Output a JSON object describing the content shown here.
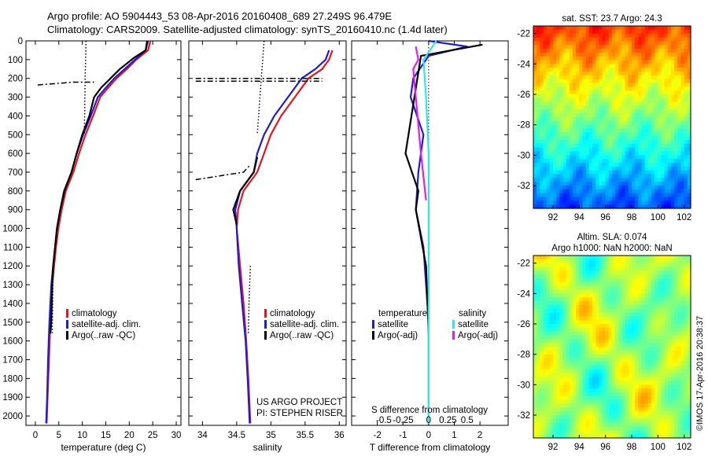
{
  "header": {
    "line1": "Argo profile: AO 5904443_53 08-Apr-2016 20160408_689 27.249S 96.479E",
    "line2": "Climatology: CARS2009. Satellite-adjusted climatology: synTS_20160410.nc (1.4d later)"
  },
  "colors": {
    "climatology": "#e8141c",
    "satellite": "#1c1ce0",
    "argo": "#000000",
    "sal_satellite": "#2ee8e8",
    "sal_argo": "#e81ce8"
  },
  "chart_data": [
    {
      "type": "line",
      "panel": "temperature",
      "xlabel": "temperature (deg C)",
      "xlim": [
        -2,
        31
      ],
      "xticks": [
        0,
        5,
        10,
        15,
        20,
        25,
        30
      ],
      "ylim": [
        2050,
        0
      ],
      "yticks": [
        0,
        100,
        200,
        300,
        400,
        500,
        600,
        700,
        800,
        900,
        1000,
        1100,
        1200,
        1300,
        1400,
        1500,
        1600,
        1700,
        1800,
        1900,
        2000
      ],
      "legend": [
        "climatology",
        "satellite-adj. clim.",
        "Argo(..raw -QC)"
      ],
      "series": [
        {
          "name": "climatology",
          "color": "#e8141c",
          "points": [
            [
              24.5,
              0
            ],
            [
              24,
              50
            ],
            [
              21.5,
              100
            ],
            [
              19.5,
              150
            ],
            [
              17.3,
              200
            ],
            [
              15.5,
              250
            ],
            [
              13.8,
              300
            ],
            [
              12.3,
              400
            ],
            [
              10.7,
              500
            ],
            [
              9.3,
              600
            ],
            [
              8.1,
              700
            ],
            [
              6.5,
              800
            ],
            [
              5.6,
              900
            ],
            [
              4.9,
              1000
            ],
            [
              4.4,
              1100
            ],
            [
              4.0,
              1200
            ],
            [
              3.6,
              1300
            ],
            [
              3.2,
              1500
            ],
            [
              2.9,
              1700
            ],
            [
              2.6,
              1900
            ],
            [
              2.4,
              2040
            ]
          ]
        },
        {
          "name": "satellite-adj. clim.",
          "color": "#1c1ce0",
          "points": [
            [
              24.0,
              0
            ],
            [
              23.5,
              50
            ],
            [
              21.2,
              100
            ],
            [
              19,
              150
            ],
            [
              16.8,
              200
            ],
            [
              15,
              250
            ],
            [
              13.3,
              300
            ],
            [
              11.8,
              400
            ],
            [
              10.2,
              500
            ],
            [
              8.8,
              600
            ],
            [
              7.7,
              700
            ],
            [
              6.1,
              800
            ],
            [
              5.3,
              900
            ],
            [
              4.6,
              1000
            ],
            [
              4.2,
              1100
            ],
            [
              3.8,
              1200
            ],
            [
              3.4,
              1300
            ],
            [
              3.0,
              1500
            ],
            [
              2.7,
              1700
            ],
            [
              2.5,
              1900
            ],
            [
              2.3,
              2040
            ]
          ]
        },
        {
          "name": "Argo",
          "color": "#000000",
          "points": [
            [
              23.8,
              0
            ],
            [
              23.5,
              50
            ],
            [
              21,
              90
            ],
            [
              18,
              150
            ],
            [
              16,
              200
            ],
            [
              14,
              250
            ],
            [
              12.5,
              300
            ],
            [
              11.5,
              400
            ],
            [
              10,
              500
            ],
            [
              8.8,
              600
            ],
            [
              7.7,
              700
            ],
            [
              6.2,
              800
            ],
            [
              5.3,
              900
            ],
            [
              4.6,
              1000
            ],
            [
              4.2,
              1100
            ],
            [
              3.8,
              1200
            ],
            [
              3.6,
              1300
            ],
            [
              3.4,
              1500
            ],
            [
              3.2,
              1560
            ]
          ]
        },
        {
          "name": "Argo raw",
          "style": "dashdot",
          "color": "#000000",
          "points": [
            [
              0.5,
              235
            ],
            [
              8,
              220
            ],
            [
              12.5,
              220
            ]
          ]
        },
        {
          "name": "Argo raw",
          "style": "dotted",
          "color": "#000000",
          "points": [
            [
              10.8,
              0
            ],
            [
              10.6,
              200
            ],
            [
              10.5,
              400
            ],
            [
              10.4,
              500
            ]
          ]
        },
        {
          "name": "Argo raw",
          "style": "dotted",
          "color": "#000000",
          "points": [
            [
              3.8,
              1200
            ],
            [
              3.7,
              1400
            ],
            [
              3.6,
              1560
            ]
          ]
        }
      ]
    },
    {
      "type": "line",
      "panel": "salinity",
      "xlabel": "salinity",
      "xlim": [
        33.8,
        36.1
      ],
      "xticks": [
        34,
        34.5,
        35,
        35.5,
        36
      ],
      "ylim": [
        2050,
        0
      ],
      "legend": [
        "climatology",
        "satellite-adj. clim.",
        "Argo(..raw -QC)"
      ],
      "annotation": [
        "US ARGO PROJECT",
        "PI: STEPHEN RISER"
      ],
      "series": [
        {
          "name": "climatology",
          "color": "#e8141c",
          "points": [
            [
              35.9,
              50
            ],
            [
              35.85,
              100
            ],
            [
              35.75,
              150
            ],
            [
              35.55,
              200
            ],
            [
              35.35,
              300
            ],
            [
              35.15,
              400
            ],
            [
              35.0,
              500
            ],
            [
              34.9,
              600
            ],
            [
              34.8,
              700
            ],
            [
              34.6,
              800
            ],
            [
              34.52,
              900
            ],
            [
              34.5,
              1000
            ],
            [
              34.55,
              1200
            ],
            [
              34.6,
              1400
            ],
            [
              34.64,
              1600
            ],
            [
              34.67,
              1800
            ],
            [
              34.7,
              2040
            ]
          ]
        },
        {
          "name": "satellite-adj. clim.",
          "color": "#1c1ce0",
          "points": [
            [
              35.85,
              50
            ],
            [
              35.8,
              100
            ],
            [
              35.65,
              150
            ],
            [
              35.45,
              200
            ],
            [
              35.25,
              300
            ],
            [
              35.05,
              400
            ],
            [
              34.9,
              500
            ],
            [
              34.8,
              600
            ],
            [
              34.75,
              700
            ],
            [
              34.55,
              800
            ],
            [
              34.48,
              900
            ],
            [
              34.5,
              1000
            ],
            [
              34.53,
              1200
            ],
            [
              34.58,
              1400
            ],
            [
              34.63,
              1600
            ],
            [
              34.66,
              1800
            ],
            [
              34.69,
              2040
            ]
          ]
        },
        {
          "name": "Argo",
          "color": "#000000",
          "points": [
            [
              34.8,
              620
            ],
            [
              34.75,
              700
            ],
            [
              34.55,
              800
            ],
            [
              34.45,
              900
            ],
            [
              34.5,
              980
            ]
          ]
        },
        {
          "name": "Argo raw",
          "style": "dashdot",
          "color": "#000000",
          "points": [
            [
              33.9,
              200
            ],
            [
              35.3,
              200
            ],
            [
              35.75,
              200
            ]
          ]
        },
        {
          "name": "Argo raw",
          "style": "dashdot",
          "color": "#000000",
          "points": [
            [
              33.9,
              215
            ],
            [
              35.2,
              215
            ],
            [
              35.75,
              215
            ]
          ]
        },
        {
          "name": "Argo raw",
          "style": "dashdot",
          "color": "#000000",
          "points": [
            [
              33.9,
              740
            ],
            [
              34.6,
              700
            ],
            [
              34.7,
              660
            ]
          ]
        },
        {
          "name": "Argo raw",
          "style": "dotted",
          "color": "#000000",
          "points": [
            [
              34.9,
              0
            ],
            [
              34.85,
              250
            ],
            [
              34.8,
              500
            ]
          ]
        },
        {
          "name": "Argo raw",
          "style": "dotted",
          "color": "#000000",
          "points": [
            [
              34.7,
              1200
            ],
            [
              34.68,
              1400
            ],
            [
              34.67,
              1560
            ]
          ]
        }
      ]
    },
    {
      "type": "line",
      "panel": "difference",
      "xlabel": "T difference from climatology",
      "x2label": "S difference from climatology",
      "xlim": [
        -3.0,
        3.1
      ],
      "xticks": [
        -2,
        -1,
        0,
        1,
        2
      ],
      "x2ticks": [
        "-0.5",
        "-0.25",
        "0",
        "0.25",
        "0.5"
      ],
      "ylim": [
        2050,
        0
      ],
      "legend_left_title": "temperature",
      "legend_right_title": "salinity",
      "legend": [
        "satellite",
        "Argo(-adj)",
        "satellite",
        "Argo(-adj)"
      ],
      "series": [
        {
          "name": "T satellite",
          "color": "#1c1ce0",
          "points": [
            [
              0,
              0
            ],
            [
              1.5,
              30
            ],
            [
              0,
              80
            ],
            [
              -0.6,
              200
            ],
            [
              -0.7,
              300
            ],
            [
              -0.2,
              500
            ],
            [
              -0.4,
              700
            ],
            [
              -0.5,
              900
            ],
            [
              -0.2,
              1100
            ],
            [
              -0.1,
              1300
            ],
            [
              0,
              1500
            ],
            [
              0,
              2040
            ]
          ]
        },
        {
          "name": "T Argo",
          "color": "#000000",
          "points": [
            [
              2.1,
              20
            ],
            [
              -0.3,
              80
            ],
            [
              -0.9,
              600
            ],
            [
              -0.4,
              800
            ],
            [
              -0.5,
              900
            ],
            [
              -0.1,
              1200
            ],
            [
              0,
              1560
            ]
          ]
        },
        {
          "name": "S satellite",
          "color": "#2ee8e8",
          "points": [
            [
              0.3,
              0
            ],
            [
              -0.2,
              100
            ],
            [
              -0.1,
              300
            ],
            [
              0,
              600
            ],
            [
              0,
              900
            ],
            [
              0,
              1300
            ],
            [
              0,
              2040
            ]
          ]
        },
        {
          "name": "S Argo",
          "color": "#e81ce8",
          "points": [
            [
              -0.5,
              30
            ],
            [
              -0.4,
              100
            ],
            [
              -0.6,
              150
            ],
            [
              -0.3,
              600
            ],
            [
              -0.1,
              850
            ]
          ]
        }
      ]
    },
    {
      "type": "heatmap",
      "panel": "sst",
      "title": "sat. SST: 23.7 Argo: 24.3",
      "xlim": [
        90.5,
        102.5
      ],
      "ylim": [
        -33.5,
        -21.5
      ],
      "xticks": [
        92,
        94,
        96,
        98,
        100,
        102
      ],
      "yticks": [
        -22,
        -24,
        -26,
        -28,
        -30,
        -32
      ]
    },
    {
      "type": "heatmap",
      "panel": "sla",
      "title_line1": "Altim. SLA: 0.074",
      "title_line2": "Argo h1000: NaN h2000: NaN",
      "xlim": [
        90.5,
        102.5
      ],
      "ylim": [
        -33.5,
        -21.5
      ],
      "xticks": [
        92,
        94,
        96,
        98,
        100,
        102
      ],
      "yticks": [
        -22,
        -24,
        -26,
        -28,
        -30,
        -32
      ]
    }
  ],
  "credit": "©IMOS 17-Apr-2016 20:38:37"
}
